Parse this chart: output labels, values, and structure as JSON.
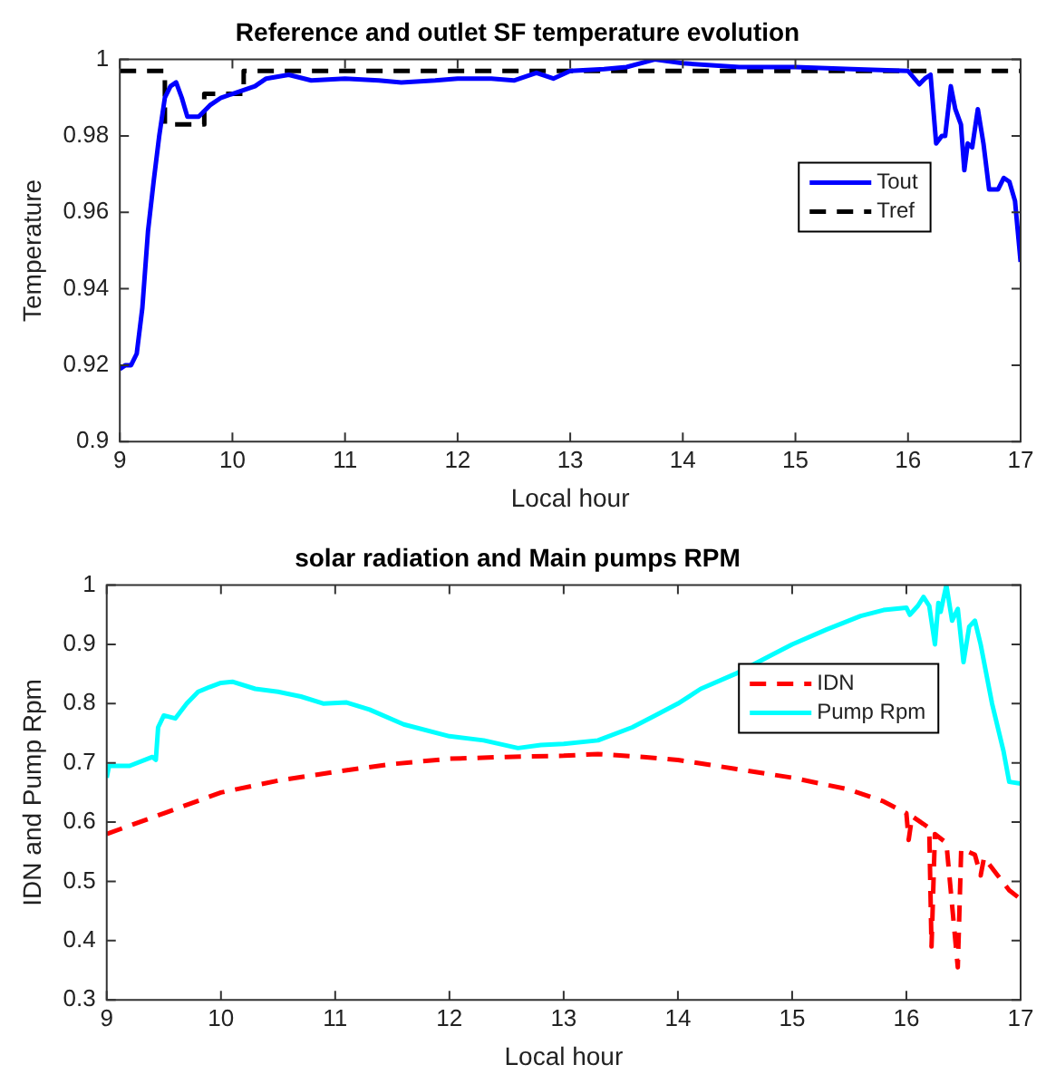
{
  "chart_data": [
    {
      "type": "line",
      "title": "Reference and outlet SF temperature evolution",
      "xlabel": "Local hour",
      "ylabel": "Temperature",
      "xlim": [
        9,
        17
      ],
      "xticks": [
        9,
        10,
        11,
        12,
        13,
        14,
        15,
        16,
        17
      ],
      "ylim": [
        0.9,
        1
      ],
      "yticks": [
        0.9,
        0.92,
        0.94,
        0.96,
        0.98,
        1
      ],
      "grid": false,
      "legend": "right",
      "series": [
        {
          "name": "Tout",
          "color": "#0000ff",
          "line_style": "solid",
          "x": [
            9,
            9.05,
            9.1,
            9.15,
            9.2,
            9.25,
            9.3,
            9.35,
            9.4,
            9.45,
            9.5,
            9.55,
            9.6,
            9.7,
            9.8,
            9.9,
            10,
            10.1,
            10.2,
            10.3,
            10.5,
            10.7,
            11,
            11.3,
            11.5,
            11.8,
            12,
            12.3,
            12.5,
            12.7,
            12.85,
            13,
            13.3,
            13.5,
            13.75,
            14,
            14.5,
            15,
            15.5,
            16,
            16.1,
            16.15,
            16.2,
            16.25,
            16.3,
            16.33,
            16.38,
            16.42,
            16.47,
            16.5,
            16.53,
            16.57,
            16.62,
            16.67,
            16.72,
            16.8,
            16.85,
            16.9,
            16.95,
            17
          ],
          "values": [
            0.919,
            0.92,
            0.92,
            0.923,
            0.935,
            0.955,
            0.968,
            0.98,
            0.99,
            0.993,
            0.994,
            0.99,
            0.985,
            0.985,
            0.988,
            0.99,
            0.991,
            0.992,
            0.993,
            0.995,
            0.996,
            0.9945,
            0.995,
            0.9945,
            0.994,
            0.9945,
            0.995,
            0.995,
            0.9945,
            0.9965,
            0.995,
            0.997,
            0.9975,
            0.998,
            1.0,
            0.999,
            0.998,
            0.998,
            0.9975,
            0.997,
            0.9935,
            0.995,
            0.996,
            0.978,
            0.98,
            0.98,
            0.993,
            0.987,
            0.983,
            0.971,
            0.978,
            0.977,
            0.987,
            0.978,
            0.966,
            0.966,
            0.969,
            0.968,
            0.963,
            0.947
          ]
        },
        {
          "name": "Tref",
          "color": "#000000",
          "line_style": "dashed",
          "x": [
            9,
            9.4,
            9.4,
            9.75,
            9.75,
            10.1,
            10.1,
            17
          ],
          "values": [
            0.997,
            0.997,
            0.983,
            0.983,
            0.991,
            0.991,
            0.997,
            0.997
          ]
        }
      ]
    },
    {
      "type": "line",
      "title": "solar radiation and Main pumps RPM",
      "xlabel": "Local hour",
      "ylabel": "IDN and Pump Rpm",
      "xlim": [
        9,
        17
      ],
      "xticks": [
        9,
        10,
        11,
        12,
        13,
        14,
        15,
        16,
        17
      ],
      "ylim": [
        0.3,
        1
      ],
      "yticks": [
        0.3,
        0.4,
        0.5,
        0.6,
        0.7,
        0.8,
        0.9,
        1
      ],
      "grid": false,
      "legend": "top right",
      "series": [
        {
          "name": "IDN",
          "color": "#ff0000",
          "line_style": "dashed",
          "x": [
            9,
            9.5,
            10,
            10.5,
            11,
            11.5,
            12,
            12.5,
            13,
            13.3,
            13.7,
            14,
            14.5,
            15,
            15.5,
            15.8,
            16,
            16.02,
            16.05,
            16.2,
            16.22,
            16.25,
            16.35,
            16.45,
            16.48,
            16.6,
            16.65,
            16.68,
            16.8,
            16.9,
            17
          ],
          "values": [
            0.58,
            0.615,
            0.65,
            0.67,
            0.685,
            0.698,
            0.707,
            0.71,
            0.712,
            0.715,
            0.71,
            0.705,
            0.69,
            0.675,
            0.655,
            0.635,
            0.615,
            0.57,
            0.61,
            0.59,
            0.39,
            0.58,
            0.565,
            0.355,
            0.555,
            0.545,
            0.51,
            0.54,
            0.51,
            0.485,
            0.47
          ]
        },
        {
          "name": "Pump Rpm",
          "color": "#00ffff",
          "line_style": "solid",
          "x": [
            9,
            9.02,
            9.2,
            9.4,
            9.43,
            9.45,
            9.5,
            9.6,
            9.7,
            9.8,
            9.9,
            10,
            10.1,
            10.3,
            10.5,
            10.7,
            10.9,
            11.1,
            11.3,
            11.6,
            12,
            12.3,
            12.6,
            12.8,
            13,
            13.3,
            13.6,
            13.8,
            14,
            14.2,
            14.5,
            14.8,
            15,
            15.3,
            15.6,
            15.8,
            16,
            16.03,
            16.1,
            16.15,
            16.2,
            16.25,
            16.28,
            16.3,
            16.35,
            16.4,
            16.45,
            16.5,
            16.55,
            16.6,
            16.65,
            16.75,
            16.85,
            16.9,
            17
          ],
          "values": [
            0.675,
            0.695,
            0.695,
            0.71,
            0.705,
            0.76,
            0.78,
            0.775,
            0.8,
            0.82,
            0.828,
            0.835,
            0.837,
            0.825,
            0.82,
            0.812,
            0.8,
            0.802,
            0.79,
            0.765,
            0.745,
            0.738,
            0.725,
            0.73,
            0.732,
            0.738,
            0.76,
            0.78,
            0.8,
            0.825,
            0.85,
            0.88,
            0.9,
            0.925,
            0.948,
            0.958,
            0.962,
            0.95,
            0.965,
            0.98,
            0.965,
            0.9,
            0.97,
            0.955,
            1.0,
            0.94,
            0.96,
            0.87,
            0.93,
            0.94,
            0.9,
            0.8,
            0.72,
            0.668,
            0.665
          ]
        }
      ]
    }
  ]
}
